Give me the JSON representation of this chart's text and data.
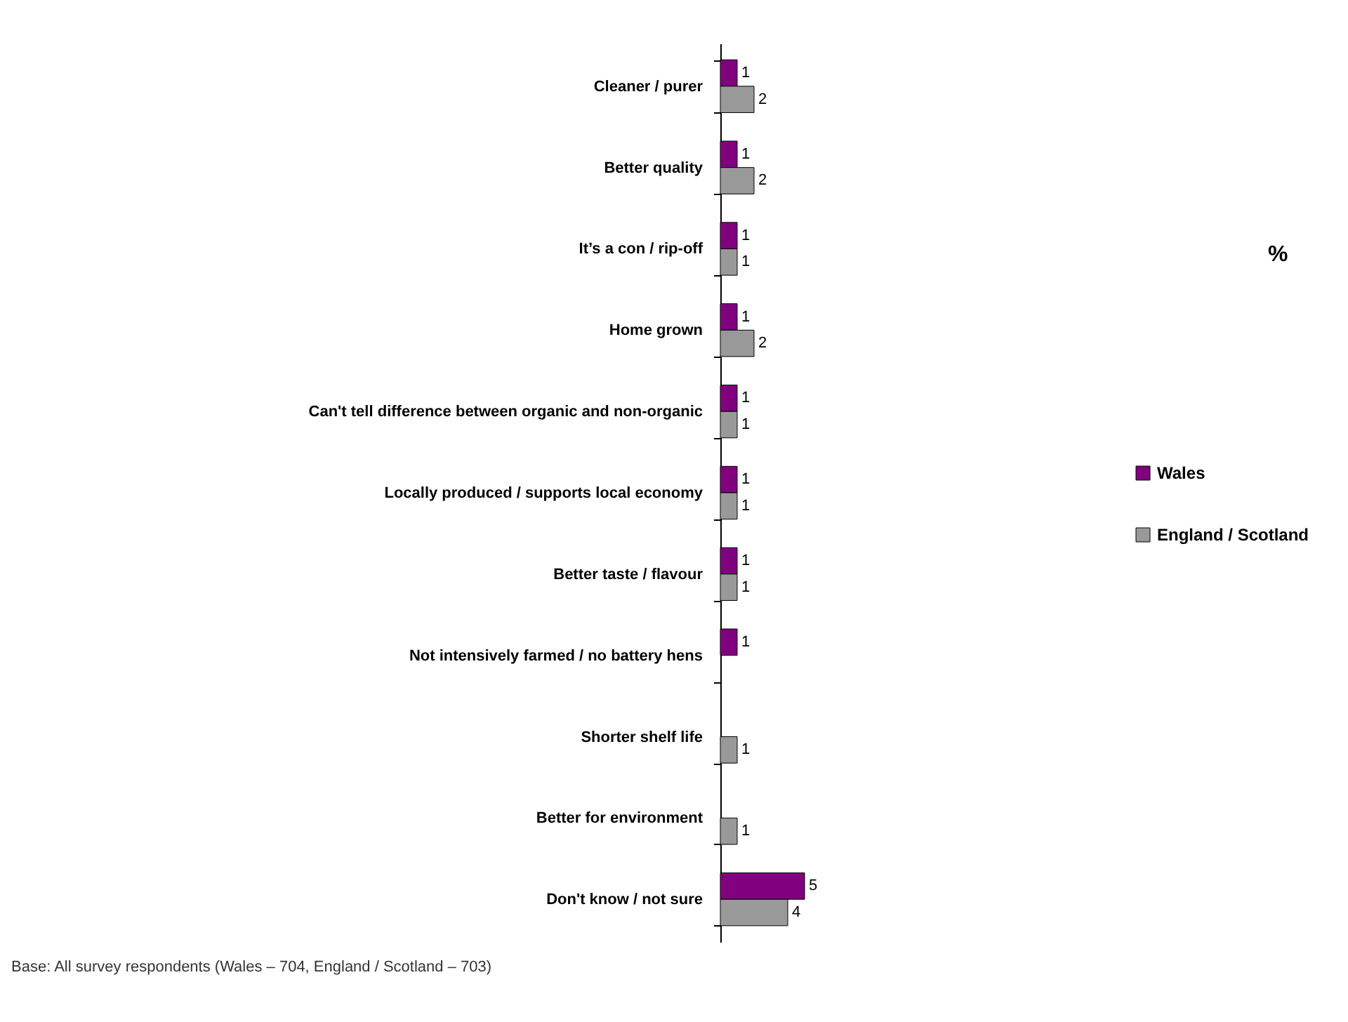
{
  "chart_data": {
    "type": "bar",
    "orientation": "horizontal",
    "categories": [
      "Cleaner / purer",
      "Better quality",
      "It’s a con / rip-off",
      "Home grown",
      "Can't tell difference between organic and non-organic",
      "Locally produced / supports local economy",
      "Better taste / flavour",
      "Not intensively farmed / no battery hens",
      "Shorter shelf life",
      "Better for environment",
      "Don't know / not sure"
    ],
    "series": [
      {
        "name": "Wales",
        "color": "#800080",
        "values": [
          1,
          1,
          1,
          1,
          1,
          1,
          1,
          1,
          null,
          null,
          5
        ]
      },
      {
        "name": "England / Scotland",
        "color": "#999999",
        "values": [
          2,
          2,
          1,
          2,
          1,
          1,
          1,
          null,
          1,
          1,
          4
        ]
      }
    ],
    "data_labels": true,
    "legend": "right",
    "grid": false,
    "annotations": [
      "%",
      "Base: All survey respondents (Wales – 704, England / Scotland – 703)"
    ]
  }
}
